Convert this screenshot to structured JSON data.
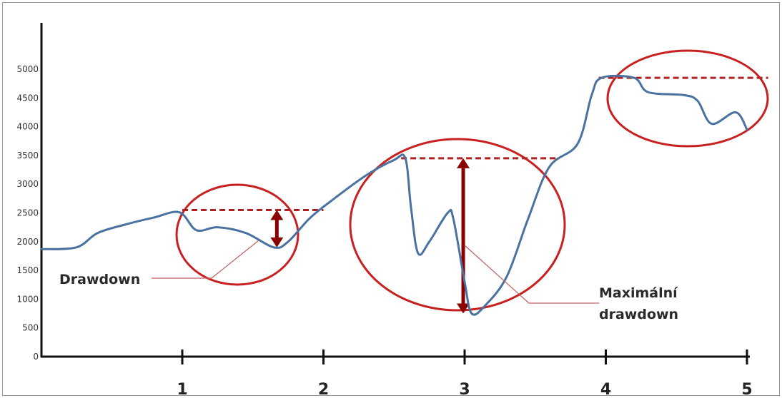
{
  "chart_data": {
    "type": "line",
    "title": "",
    "xlabel": "",
    "ylabel": "",
    "x_ticks": [
      "1",
      "2",
      "3",
      "4",
      "5"
    ],
    "y_ticks": [
      "0",
      "500",
      "1000",
      "1500",
      "2000",
      "2500",
      "3000",
      "3500",
      "4000",
      "4500",
      "5000"
    ],
    "ylim": [
      0,
      5000
    ],
    "xlim": [
      0,
      5
    ],
    "grid": false,
    "legend": "none",
    "series": [
      {
        "color": "#4a72a0",
        "points": [
          [
            0.0,
            1870
          ],
          [
            0.25,
            1900
          ],
          [
            0.4,
            2150
          ],
          [
            0.6,
            2300
          ],
          [
            0.8,
            2420
          ],
          [
            0.98,
            2510
          ],
          [
            1.1,
            2200
          ],
          [
            1.25,
            2250
          ],
          [
            1.45,
            2150
          ],
          [
            1.65,
            1900
          ],
          [
            1.75,
            2000
          ],
          [
            1.9,
            2400
          ],
          [
            2.05,
            2700
          ],
          [
            2.3,
            3150
          ],
          [
            2.5,
            3420
          ],
          [
            2.58,
            3450
          ],
          [
            2.62,
            2600
          ],
          [
            2.67,
            1800
          ],
          [
            2.75,
            2000
          ],
          [
            2.88,
            2500
          ],
          [
            2.92,
            2400
          ],
          [
            3.0,
            1300
          ],
          [
            3.05,
            750
          ],
          [
            3.15,
            900
          ],
          [
            3.3,
            1400
          ],
          [
            3.45,
            2400
          ],
          [
            3.6,
            3300
          ],
          [
            3.8,
            3700
          ],
          [
            3.9,
            4550
          ],
          [
            3.97,
            4850
          ],
          [
            4.2,
            4850
          ],
          [
            4.3,
            4600
          ],
          [
            4.55,
            4550
          ],
          [
            4.65,
            4450
          ],
          [
            4.75,
            4050
          ],
          [
            4.92,
            4250
          ],
          [
            5.0,
            3950
          ]
        ]
      }
    ],
    "reference_lines": [
      {
        "y": 2550,
        "x_from": 1.0,
        "x_to": 2.0,
        "color": "#b02020",
        "style": "dashed"
      },
      {
        "y": 3450,
        "x_from": 2.55,
        "x_to": 3.65,
        "color": "#b02020",
        "style": "dashed"
      },
      {
        "y": 4850,
        "x_from": 3.95,
        "x_to": 5.15,
        "color": "#b02020",
        "style": "dashed"
      }
    ],
    "arrows": [
      {
        "x": 1.67,
        "y_from": 2550,
        "y_to": 1900,
        "color": "#8b0000",
        "style": "double-headed"
      },
      {
        "x": 2.99,
        "y_from": 3450,
        "y_to": 750,
        "color": "#8b0000",
        "style": "double-headed"
      }
    ],
    "ellipses": [
      {
        "name": "drawdown",
        "color": "#c82020"
      },
      {
        "name": "max-drawdown",
        "color": "#c82020"
      },
      {
        "name": "peak",
        "color": "#c82020"
      }
    ],
    "annotations": [
      {
        "name": "drawdown-label",
        "lines": [
          "Drawdown"
        ]
      },
      {
        "name": "max-drawdown-label",
        "lines": [
          "Maximální",
          "drawdown"
        ]
      }
    ]
  }
}
